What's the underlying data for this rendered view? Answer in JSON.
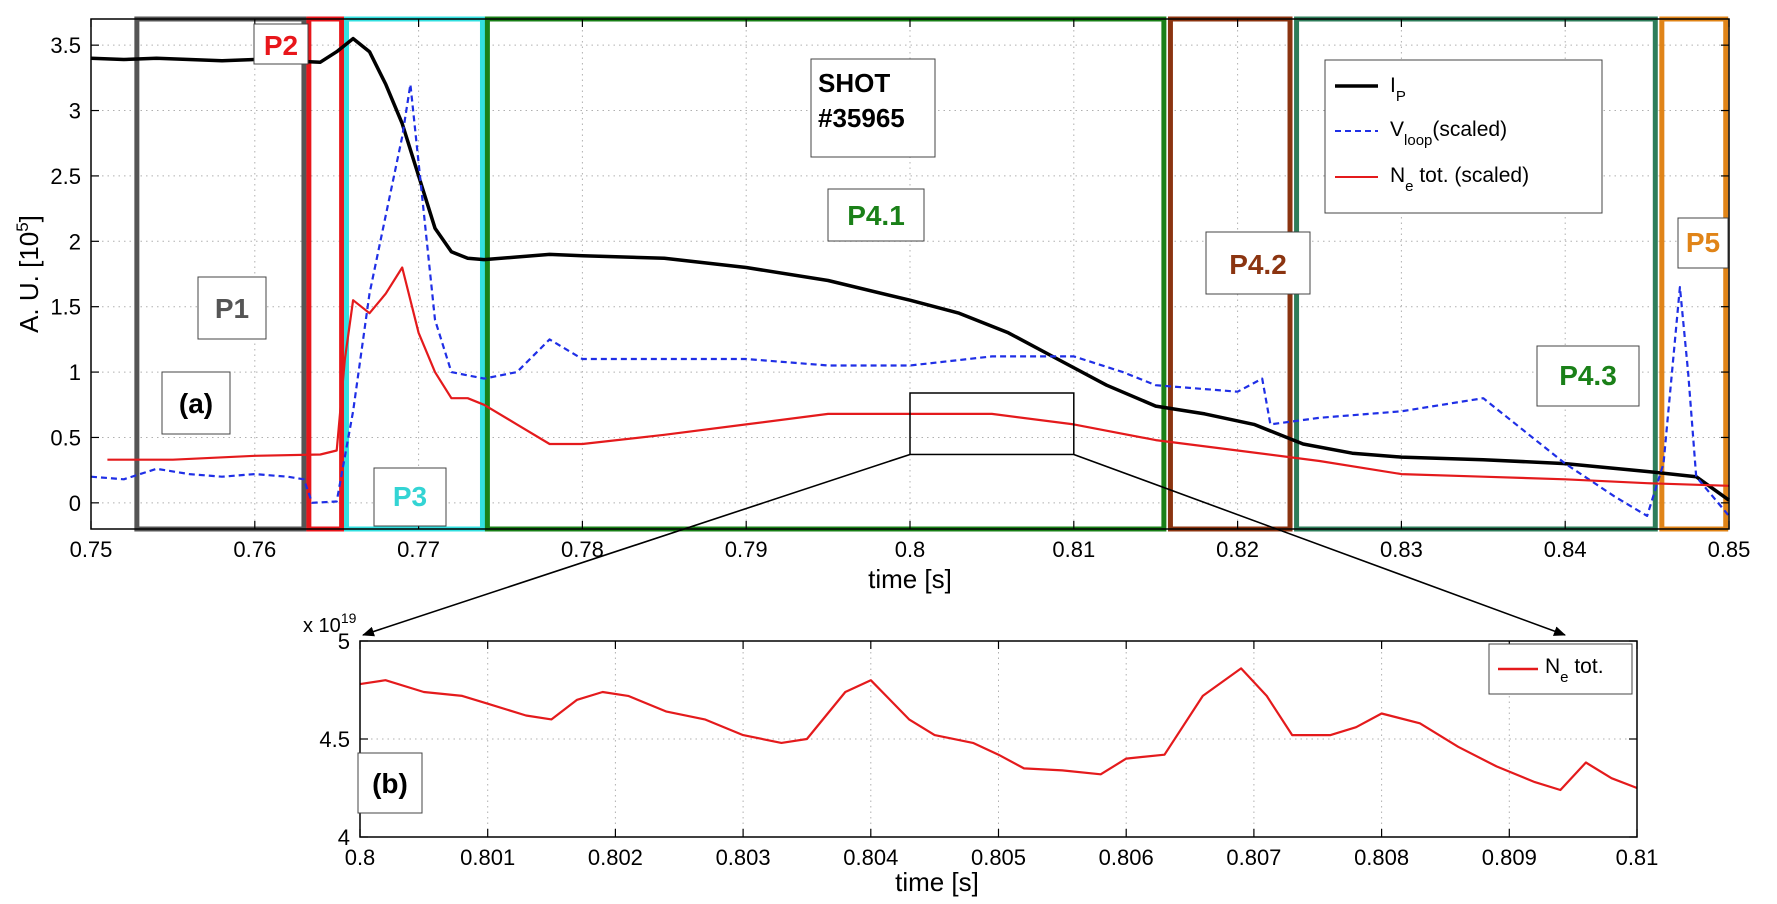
{
  "chart_data": [
    {
      "type": "line",
      "panel_label": "(a)",
      "xlabel": "time [s]",
      "ylabel": "A. U. [10",
      "ylabel_exp": "5",
      "ylabel_close": "]",
      "xlim": [
        0.75,
        0.85
      ],
      "ylim": [
        -0.2,
        3.7
      ],
      "xticks": [
        0.75,
        0.76,
        0.77,
        0.78,
        0.79,
        0.8,
        0.81,
        0.82,
        0.83,
        0.84,
        0.85
      ],
      "xtick_labels": [
        "0.75",
        "0.76",
        "0.77",
        "0.78",
        "0.79",
        "0.8",
        "0.81",
        "0.82",
        "0.83",
        "0.84",
        "0.85"
      ],
      "yticks": [
        0,
        0.5,
        1,
        1.5,
        2,
        2.5,
        3,
        3.5
      ],
      "ytick_labels": [
        "0",
        "0.5",
        "1",
        "1.5",
        "2",
        "2.5",
        "3",
        "3.5"
      ],
      "shot_label_line1": "SHOT",
      "shot_label_line2": "#35965",
      "legend": [
        {
          "base": "I",
          "sub": "P",
          "rest": ""
        },
        {
          "base": "V",
          "sub": "loop",
          "rest": "(scaled)"
        },
        {
          "base": "N",
          "sub": "e",
          "rest": " tot. (scaled)"
        }
      ],
      "series": [
        {
          "name": "I_P",
          "color": "#000000",
          "style": "solid",
          "x": [
            0.75,
            0.752,
            0.754,
            0.756,
            0.758,
            0.76,
            0.762,
            0.764,
            0.765,
            0.766,
            0.767,
            0.768,
            0.769,
            0.77,
            0.771,
            0.772,
            0.773,
            0.774,
            0.776,
            0.778,
            0.78,
            0.785,
            0.79,
            0.795,
            0.8,
            0.803,
            0.806,
            0.809,
            0.812,
            0.815,
            0.818,
            0.821,
            0.824,
            0.827,
            0.83,
            0.835,
            0.84,
            0.845,
            0.848,
            0.85
          ],
          "y": [
            3.4,
            3.39,
            3.4,
            3.39,
            3.38,
            3.39,
            3.38,
            3.37,
            3.45,
            3.55,
            3.45,
            3.2,
            2.9,
            2.5,
            2.1,
            1.92,
            1.87,
            1.86,
            1.88,
            1.9,
            1.89,
            1.87,
            1.8,
            1.7,
            1.55,
            1.45,
            1.3,
            1.1,
            0.9,
            0.74,
            0.68,
            0.6,
            0.45,
            0.38,
            0.35,
            0.33,
            0.3,
            0.24,
            0.2,
            0.02
          ]
        },
        {
          "name": "V_loop (scaled)",
          "color": "#1f2fe6",
          "style": "dashed",
          "x": [
            0.75,
            0.752,
            0.754,
            0.756,
            0.758,
            0.76,
            0.762,
            0.763,
            0.7635,
            0.765,
            0.766,
            0.767,
            0.768,
            0.769,
            0.7695,
            0.77,
            0.771,
            0.772,
            0.774,
            0.776,
            0.778,
            0.78,
            0.785,
            0.79,
            0.795,
            0.8,
            0.805,
            0.81,
            0.813,
            0.815,
            0.82,
            0.8215,
            0.822,
            0.825,
            0.83,
            0.835,
            0.838,
            0.84,
            0.843,
            0.845,
            0.846,
            0.847,
            0.8475,
            0.848,
            0.85
          ],
          "y": [
            0.2,
            0.18,
            0.26,
            0.22,
            0.2,
            0.22,
            0.2,
            0.18,
            0.0,
            0.01,
            0.7,
            1.6,
            2.2,
            2.8,
            3.2,
            2.6,
            1.4,
            1.0,
            0.95,
            1.0,
            1.25,
            1.1,
            1.1,
            1.1,
            1.05,
            1.05,
            1.12,
            1.12,
            1.0,
            0.9,
            0.85,
            0.95,
            0.6,
            0.65,
            0.7,
            0.8,
            0.5,
            0.3,
            0.05,
            -0.1,
            0.3,
            1.65,
            1.0,
            0.2,
            -0.1
          ]
        },
        {
          "name": "N_e tot. (scaled)",
          "color": "#e41a1c",
          "style": "solid",
          "x": [
            0.751,
            0.755,
            0.76,
            0.764,
            0.765,
            0.7655,
            0.766,
            0.767,
            0.768,
            0.769,
            0.77,
            0.771,
            0.772,
            0.773,
            0.774,
            0.776,
            0.778,
            0.78,
            0.785,
            0.79,
            0.795,
            0.8,
            0.805,
            0.81,
            0.815,
            0.82,
            0.825,
            0.83,
            0.835,
            0.84,
            0.845,
            0.85
          ],
          "y": [
            0.33,
            0.33,
            0.36,
            0.37,
            0.4,
            1.1,
            1.55,
            1.45,
            1.6,
            1.8,
            1.3,
            1.0,
            0.8,
            0.8,
            0.75,
            0.6,
            0.45,
            0.45,
            0.52,
            0.6,
            0.68,
            0.68,
            0.68,
            0.6,
            0.48,
            0.4,
            0.32,
            0.22,
            0.2,
            0.18,
            0.15,
            0.13
          ]
        }
      ],
      "regions": [
        {
          "label": "P1",
          "color": "#555555",
          "x0": 0.7528,
          "x1": 0.763
        },
        {
          "label": "P2",
          "color": "#e8161b",
          "x0": 0.7633,
          "x1": 0.7653
        },
        {
          "label": "P3",
          "color": "#33e0e0",
          "x0": 0.7656,
          "x1": 0.7739
        },
        {
          "label": "P4.1",
          "color": "#1a8018",
          "x0": 0.7742,
          "x1": 0.8155
        },
        {
          "label": "P4.2",
          "color": "#8b3410",
          "x0": 0.8159,
          "x1": 0.8232
        },
        {
          "label": "P4.3",
          "color": "#2e7d5a",
          "x0": 0.8236,
          "x1": 0.8455
        },
        {
          "label": "P5",
          "color": "#e08418",
          "x0": 0.8459,
          "x1": 0.8498
        }
      ],
      "zoom_box": {
        "x0": 0.8,
        "x1": 0.81,
        "y0": 0.37,
        "y1": 0.84
      }
    },
    {
      "type": "line",
      "panel_label": "(b)",
      "xlabel": "time [s]",
      "ylabel": "",
      "scale_label": "x 10",
      "scale_exp": "19",
      "xlim": [
        0.8,
        0.81
      ],
      "ylim": [
        4.0,
        5.0
      ],
      "xticks": [
        0.8,
        0.801,
        0.802,
        0.803,
        0.804,
        0.805,
        0.806,
        0.807,
        0.808,
        0.809,
        0.81
      ],
      "xtick_labels": [
        "0.8",
        "0.801",
        "0.802",
        "0.803",
        "0.804",
        "0.805",
        "0.806",
        "0.807",
        "0.808",
        "0.809",
        "0.81"
      ],
      "yticks": [
        4.0,
        4.5,
        5.0
      ],
      "ytick_labels": [
        "4",
        "4.5",
        "5"
      ],
      "legend": [
        {
          "base": "N",
          "sub": "e",
          "rest": " tot."
        }
      ],
      "series": [
        {
          "name": "N_e tot.",
          "color": "#e41a1c",
          "style": "solid",
          "x": [
            0.8,
            0.8002,
            0.8005,
            0.8008,
            0.801,
            0.8013,
            0.8015,
            0.8017,
            0.8019,
            0.8021,
            0.8024,
            0.8027,
            0.803,
            0.8033,
            0.8035,
            0.8038,
            0.804,
            0.8043,
            0.8045,
            0.8048,
            0.805,
            0.8052,
            0.8055,
            0.8058,
            0.806,
            0.8063,
            0.8066,
            0.8069,
            0.8071,
            0.8073,
            0.8076,
            0.8078,
            0.808,
            0.8083,
            0.8086,
            0.8089,
            0.8092,
            0.8094,
            0.8096,
            0.8098,
            0.81
          ],
          "y": [
            4.78,
            4.8,
            4.74,
            4.72,
            4.68,
            4.62,
            4.6,
            4.7,
            4.74,
            4.72,
            4.64,
            4.6,
            4.52,
            4.48,
            4.5,
            4.74,
            4.8,
            4.6,
            4.52,
            4.48,
            4.42,
            4.35,
            4.34,
            4.32,
            4.4,
            4.42,
            4.72,
            4.86,
            4.72,
            4.52,
            4.52,
            4.56,
            4.63,
            4.58,
            4.46,
            4.36,
            4.28,
            4.24,
            4.38,
            4.3,
            4.25
          ]
        }
      ]
    }
  ]
}
